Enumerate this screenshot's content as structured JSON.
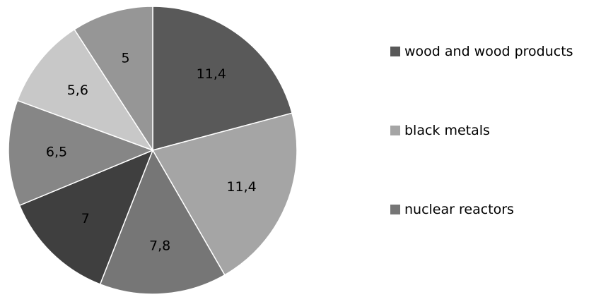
{
  "chart_data": {
    "type": "pie",
    "values": [
      11.4,
      11.4,
      7.8,
      7,
      6.5,
      5.6,
      5
    ],
    "labels": [
      "11,4",
      "11,4",
      "7,8",
      "7",
      "6,5",
      "5,6",
      "5"
    ],
    "colors": [
      "#595959",
      "#a5a5a5",
      "#767676",
      "#3f3f3f",
      "#868686",
      "#c8c8c8",
      "#969696"
    ],
    "start_angle_deg": 0,
    "direction": "clockwise",
    "legend_position": "right",
    "legend": [
      {
        "label": "wood and wood products",
        "color": "#595959"
      },
      {
        "label": "black metals",
        "color": "#a5a5a5"
      },
      {
        "label": "nuclear reactors",
        "color": "#767676"
      }
    ]
  }
}
